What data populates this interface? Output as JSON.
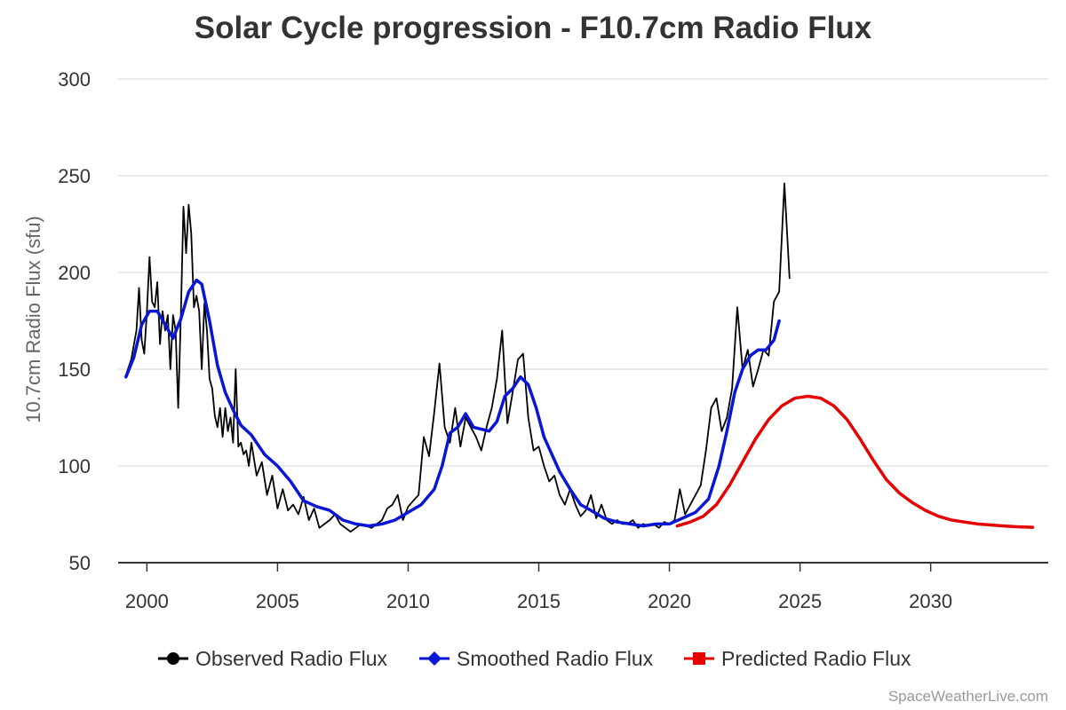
{
  "chart_data": {
    "type": "line",
    "title": "Solar Cycle progression - F10.7cm Radio Flux",
    "ylabel": "10.7cm Radio Flux (sfu)",
    "xlabel": "",
    "xlim": [
      1998.9,
      2034.5
    ],
    "ylim": [
      50,
      300
    ],
    "yticks": [
      50,
      100,
      150,
      200,
      250,
      300
    ],
    "xticks": [
      2000,
      2005,
      2010,
      2015,
      2020,
      2025,
      2030
    ],
    "grid": true,
    "legend_position": "bottom",
    "credit": "SpaceWeatherLive.com",
    "series": [
      {
        "name": "Observed Radio Flux",
        "color": "#000000",
        "marker": "circle",
        "x": [
          1999.2,
          1999.4,
          1999.6,
          1999.7,
          1999.8,
          1999.9,
          2000.0,
          2000.1,
          2000.2,
          2000.3,
          2000.4,
          2000.5,
          2000.6,
          2000.7,
          2000.8,
          2000.9,
          2001.0,
          2001.1,
          2001.2,
          2001.3,
          2001.4,
          2001.5,
          2001.6,
          2001.7,
          2001.8,
          2001.9,
          2002.0,
          2002.1,
          2002.2,
          2002.3,
          2002.4,
          2002.5,
          2002.6,
          2002.7,
          2002.8,
          2002.9,
          2003.0,
          2003.1,
          2003.2,
          2003.3,
          2003.4,
          2003.5,
          2003.6,
          2003.7,
          2003.8,
          2003.9,
          2004.0,
          2004.2,
          2004.4,
          2004.6,
          2004.8,
          2005.0,
          2005.2,
          2005.4,
          2005.6,
          2005.8,
          2006.0,
          2006.2,
          2006.4,
          2006.6,
          2006.8,
          2007.0,
          2007.2,
          2007.4,
          2007.6,
          2007.8,
          2008.0,
          2008.2,
          2008.4,
          2008.6,
          2008.8,
          2009.0,
          2009.2,
          2009.4,
          2009.6,
          2009.8,
          2010.0,
          2010.2,
          2010.4,
          2010.6,
          2010.8,
          2011.0,
          2011.2,
          2011.4,
          2011.6,
          2011.8,
          2012.0,
          2012.2,
          2012.4,
          2012.6,
          2012.8,
          2013.0,
          2013.2,
          2013.4,
          2013.6,
          2013.8,
          2014.0,
          2014.2,
          2014.4,
          2014.6,
          2014.8,
          2015.0,
          2015.2,
          2015.4,
          2015.6,
          2015.8,
          2016.0,
          2016.2,
          2016.4,
          2016.6,
          2016.8,
          2017.0,
          2017.2,
          2017.4,
          2017.6,
          2017.8,
          2018.0,
          2018.2,
          2018.4,
          2018.6,
          2018.8,
          2019.0,
          2019.2,
          2019.4,
          2019.6,
          2019.8,
          2020.0,
          2020.2,
          2020.4,
          2020.6,
          2020.8,
          2021.0,
          2021.2,
          2021.4,
          2021.6,
          2021.8,
          2022.0,
          2022.2,
          2022.4,
          2022.6,
          2022.8,
          2023.0,
          2023.2,
          2023.4,
          2023.6,
          2023.8,
          2024.0,
          2024.2,
          2024.4,
          2024.6
        ],
        "y": [
          147,
          155,
          170,
          192,
          165,
          158,
          180,
          208,
          185,
          182,
          195,
          163,
          180,
          170,
          178,
          150,
          178,
          170,
          130,
          178,
          234,
          210,
          235,
          220,
          182,
          188,
          180,
          150,
          184,
          170,
          145,
          140,
          126,
          120,
          130,
          115,
          130,
          118,
          125,
          112,
          150,
          110,
          112,
          106,
          108,
          100,
          112,
          95,
          102,
          85,
          95,
          78,
          88,
          77,
          80,
          75,
          84,
          72,
          78,
          68,
          70,
          72,
          75,
          70,
          68,
          66,
          68,
          70,
          69,
          68,
          70,
          72,
          78,
          80,
          85,
          72,
          79,
          82,
          85,
          115,
          105,
          128,
          153,
          120,
          112,
          130,
          110,
          125,
          120,
          115,
          108,
          120,
          130,
          145,
          170,
          122,
          138,
          155,
          158,
          125,
          108,
          110,
          100,
          92,
          95,
          85,
          80,
          88,
          80,
          74,
          77,
          85,
          73,
          80,
          72,
          70,
          72,
          70,
          70,
          72,
          68,
          70,
          69,
          70,
          68,
          71,
          70,
          72,
          88,
          75,
          80,
          85,
          90,
          108,
          130,
          135,
          118,
          125,
          140,
          182,
          150,
          160,
          141,
          150,
          160,
          157,
          185,
          190,
          246,
          197
        ]
      },
      {
        "name": "Smoothed Radio Flux",
        "color": "#0a16d6",
        "marker": "diamond",
        "x": [
          1999.2,
          1999.5,
          1999.8,
          2000.1,
          2000.4,
          2000.7,
          2001.0,
          2001.3,
          2001.6,
          2001.9,
          2002.1,
          2002.4,
          2002.7,
          2003.0,
          2003.3,
          2003.6,
          2004.0,
          2004.5,
          2005.0,
          2005.5,
          2006.0,
          2006.5,
          2007.0,
          2007.5,
          2008.0,
          2008.5,
          2009.0,
          2009.5,
          2010.0,
          2010.5,
          2011.0,
          2011.3,
          2011.6,
          2011.9,
          2012.2,
          2012.5,
          2012.8,
          2013.1,
          2013.4,
          2013.7,
          2014.0,
          2014.3,
          2014.6,
          2014.9,
          2015.2,
          2015.5,
          2015.8,
          2016.2,
          2016.6,
          2017.0,
          2017.5,
          2018.0,
          2018.5,
          2019.0,
          2019.5,
          2020.0,
          2020.5,
          2021.0,
          2021.5,
          2021.9,
          2022.2,
          2022.5,
          2022.8,
          2023.1,
          2023.4,
          2023.7,
          2024.0,
          2024.2
        ],
        "y": [
          146,
          156,
          173,
          180,
          180,
          173,
          166,
          176,
          190,
          196,
          194,
          175,
          152,
          138,
          129,
          121,
          116,
          106,
          100,
          92,
          82,
          79,
          77,
          72,
          70,
          69,
          70,
          72,
          76,
          80,
          88,
          100,
          117,
          120,
          127,
          120,
          119,
          118,
          123,
          136,
          140,
          146,
          142,
          130,
          115,
          106,
          97,
          88,
          80,
          77,
          73,
          71,
          70,
          69,
          70,
          70,
          73,
          76,
          83,
          100,
          118,
          138,
          150,
          157,
          160,
          160,
          165,
          175
        ]
      },
      {
        "name": "Predicted Radio Flux",
        "color": "#e60000",
        "marker": "square",
        "x": [
          2020.3,
          2020.8,
          2021.3,
          2021.8,
          2022.3,
          2022.8,
          2023.3,
          2023.8,
          2024.3,
          2024.8,
          2025.3,
          2025.8,
          2026.3,
          2026.8,
          2027.3,
          2027.8,
          2028.3,
          2028.8,
          2029.3,
          2029.8,
          2030.3,
          2030.8,
          2031.3,
          2031.8,
          2032.3,
          2032.8,
          2033.3,
          2033.9
        ],
        "y": [
          69,
          71,
          74,
          80,
          90,
          102,
          114,
          124,
          131,
          135,
          136,
          135,
          131,
          124,
          114,
          103,
          93,
          86,
          81,
          77,
          74,
          72,
          71,
          70,
          69.5,
          69,
          68.6,
          68.3
        ]
      }
    ]
  }
}
